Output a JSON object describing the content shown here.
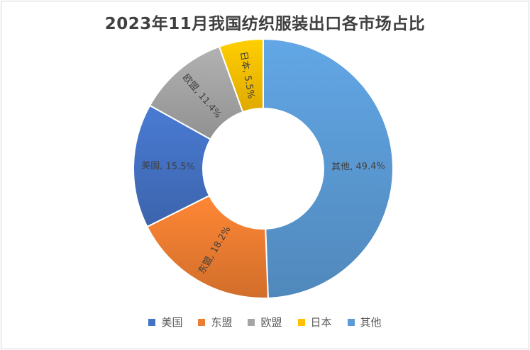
{
  "chart_data": {
    "type": "pie",
    "variant": "donut",
    "title": "2023年11月我国纺织服装出口各市场占比",
    "categories": [
      "美国",
      "东盟",
      "欧盟",
      "日本",
      "其他"
    ],
    "values": [
      15.5,
      18.2,
      11.4,
      5.5,
      49.4
    ],
    "unit": "%",
    "data_labels": [
      "美国, 15.5%",
      "东盟, 18.2%",
      "欧盟, 11.4%",
      "日本, 5.5%",
      "其他, 49.4%"
    ],
    "colors": [
      "#4472c4",
      "#ed7d31",
      "#a5a5a5",
      "#ffc000",
      "#5b9bd5"
    ],
    "drawing_order_clockwise_from_top": [
      "其他",
      "东盟",
      "美国",
      "欧盟",
      "日本"
    ],
    "legend": "bottom"
  }
}
